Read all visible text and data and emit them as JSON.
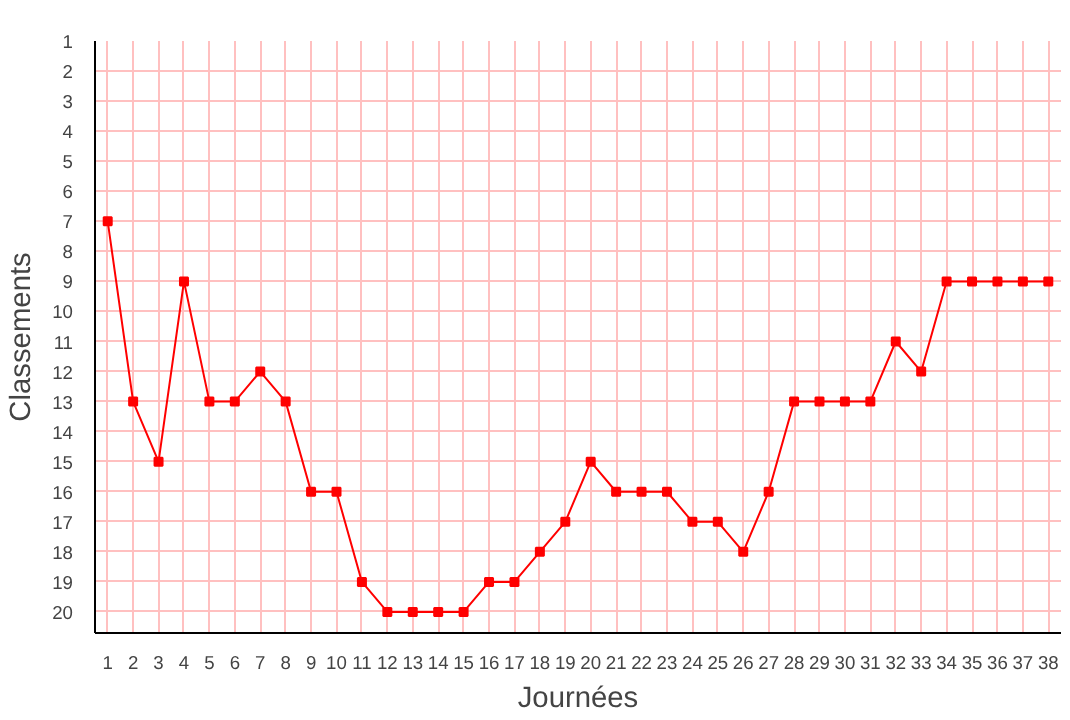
{
  "chart_data": {
    "type": "line",
    "xlabel": "Journées",
    "ylabel": "Classements",
    "x": [
      1,
      2,
      3,
      4,
      5,
      6,
      7,
      8,
      9,
      10,
      11,
      12,
      13,
      14,
      15,
      16,
      17,
      18,
      19,
      20,
      21,
      22,
      23,
      24,
      25,
      26,
      27,
      28,
      29,
      30,
      31,
      32,
      33,
      34,
      35,
      36,
      37,
      38
    ],
    "series": [
      {
        "color": "#ff0000",
        "values": [
          7,
          13,
          15,
          9,
          13,
          13,
          12,
          13,
          16,
          16,
          19,
          20,
          20,
          20,
          20,
          19,
          19,
          18,
          17,
          15,
          16,
          16,
          16,
          17,
          17,
          18,
          16,
          13,
          13,
          13,
          13,
          11,
          12,
          9,
          9,
          9,
          9,
          9
        ]
      }
    ],
    "xlim": [
      0.5,
      38.5
    ],
    "ylim": [
      20.7,
      1
    ],
    "xticks": [
      1,
      2,
      3,
      4,
      5,
      6,
      7,
      8,
      9,
      10,
      11,
      12,
      13,
      14,
      15,
      16,
      17,
      18,
      19,
      20,
      21,
      22,
      23,
      24,
      25,
      26,
      27,
      28,
      29,
      30,
      31,
      32,
      33,
      34,
      35,
      36,
      37,
      38
    ],
    "yticks": [
      1,
      2,
      3,
      4,
      5,
      6,
      7,
      8,
      9,
      10,
      11,
      12,
      13,
      14,
      15,
      16,
      17,
      18,
      19,
      20
    ],
    "grid": true,
    "marker": "square",
    "line_style": "solid"
  }
}
